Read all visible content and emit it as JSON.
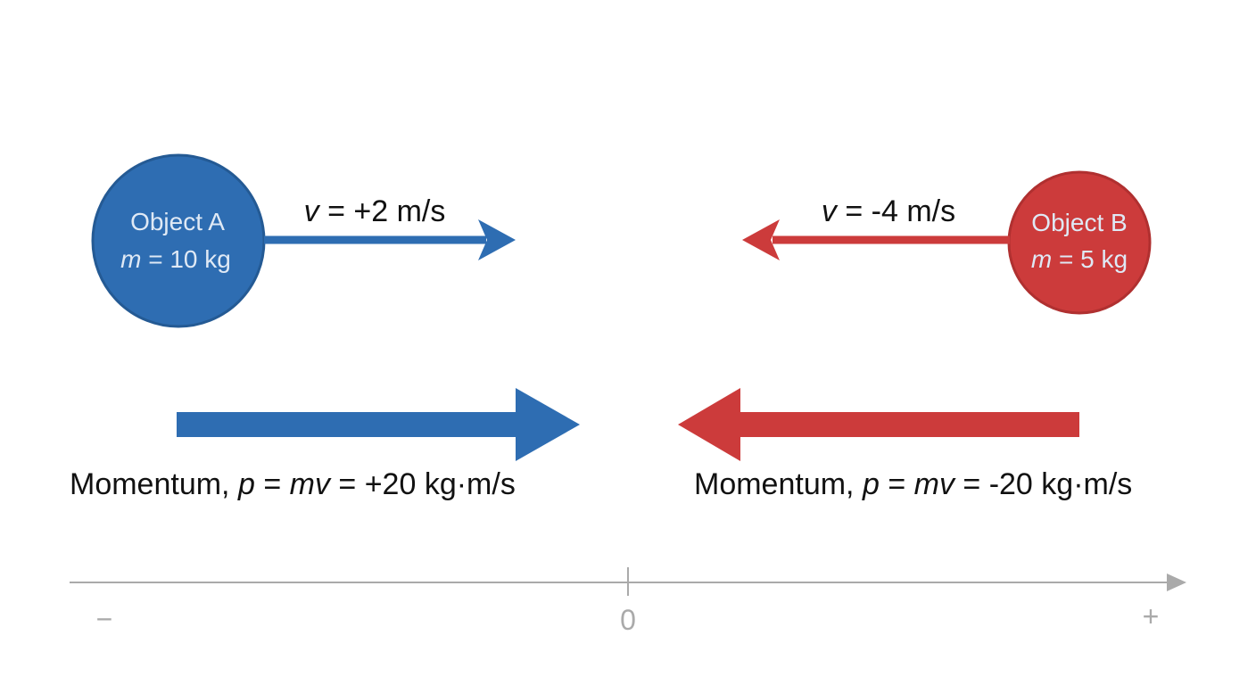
{
  "objects": [
    {
      "name": "Object A",
      "mass": {
        "symbol": "m",
        "text": " = 10 kg"
      },
      "velocity": {
        "symbol": "v",
        "text": " = +2 m/s"
      },
      "momentum": [
        "Momentum, ",
        "p",
        " = ",
        "mv",
        " = +20 kg·m/s"
      ]
    },
    {
      "name": "Object B",
      "mass": {
        "symbol": "m",
        "text": " = 5 kg"
      },
      "velocity": {
        "symbol": "v",
        "text": " = -4 m/s"
      },
      "momentum": [
        "Momentum, ",
        "p",
        " = ",
        "mv",
        " = -20 kg·m/s"
      ]
    }
  ],
  "axis": {
    "minus": "−",
    "zero": "0",
    "plus": "+"
  }
}
